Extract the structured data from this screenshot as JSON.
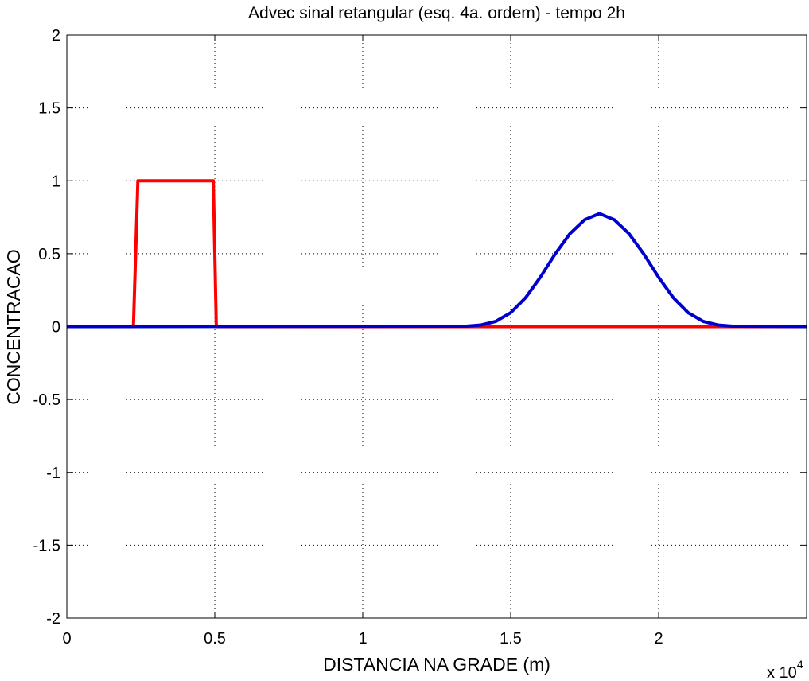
{
  "chart_data": {
    "type": "line",
    "title": "Advec sinal retangular (esq. 4a. ordem) - tempo 2h",
    "xlabel": "DISTANCIA NA GRADE (m)",
    "ylabel": "CONCENTRACAO",
    "x_multiplier": {
      "base": "x 10",
      "exponent": "4"
    },
    "xlim": [
      0,
      25000
    ],
    "ylim": [
      -2,
      2
    ],
    "grid": true,
    "x_ticks": [
      0,
      5000,
      10000,
      15000,
      20000
    ],
    "x_tick_labels": [
      "0",
      "0.5",
      "1",
      "1.5",
      "2"
    ],
    "y_ticks": [
      -2,
      -1.5,
      -1,
      -0.5,
      0,
      0.5,
      1,
      1.5,
      2
    ],
    "y_tick_labels": [
      "-2",
      "-1.5",
      "-1",
      "-0.5",
      "0",
      "0.5",
      "1",
      "1.5",
      "2"
    ],
    "series": [
      {
        "color": "#ff0000",
        "x": [
          0,
          2250,
          2400,
          4950,
          5050,
          25000
        ],
        "y": [
          0,
          0,
          1,
          1,
          0,
          0
        ]
      },
      {
        "color": "#0000cc",
        "x": [
          0,
          13500,
          14000,
          14500,
          15000,
          15500,
          16000,
          16500,
          17000,
          17500,
          18000,
          18500,
          19000,
          19500,
          20000,
          20500,
          21000,
          21500,
          22000,
          22500,
          25000
        ],
        "y": [
          0,
          0.003,
          0.011,
          0.036,
          0.095,
          0.197,
          0.338,
          0.497,
          0.637,
          0.733,
          0.775,
          0.733,
          0.637,
          0.497,
          0.338,
          0.197,
          0.095,
          0.036,
          0.011,
          0.003,
          0
        ]
      }
    ]
  }
}
